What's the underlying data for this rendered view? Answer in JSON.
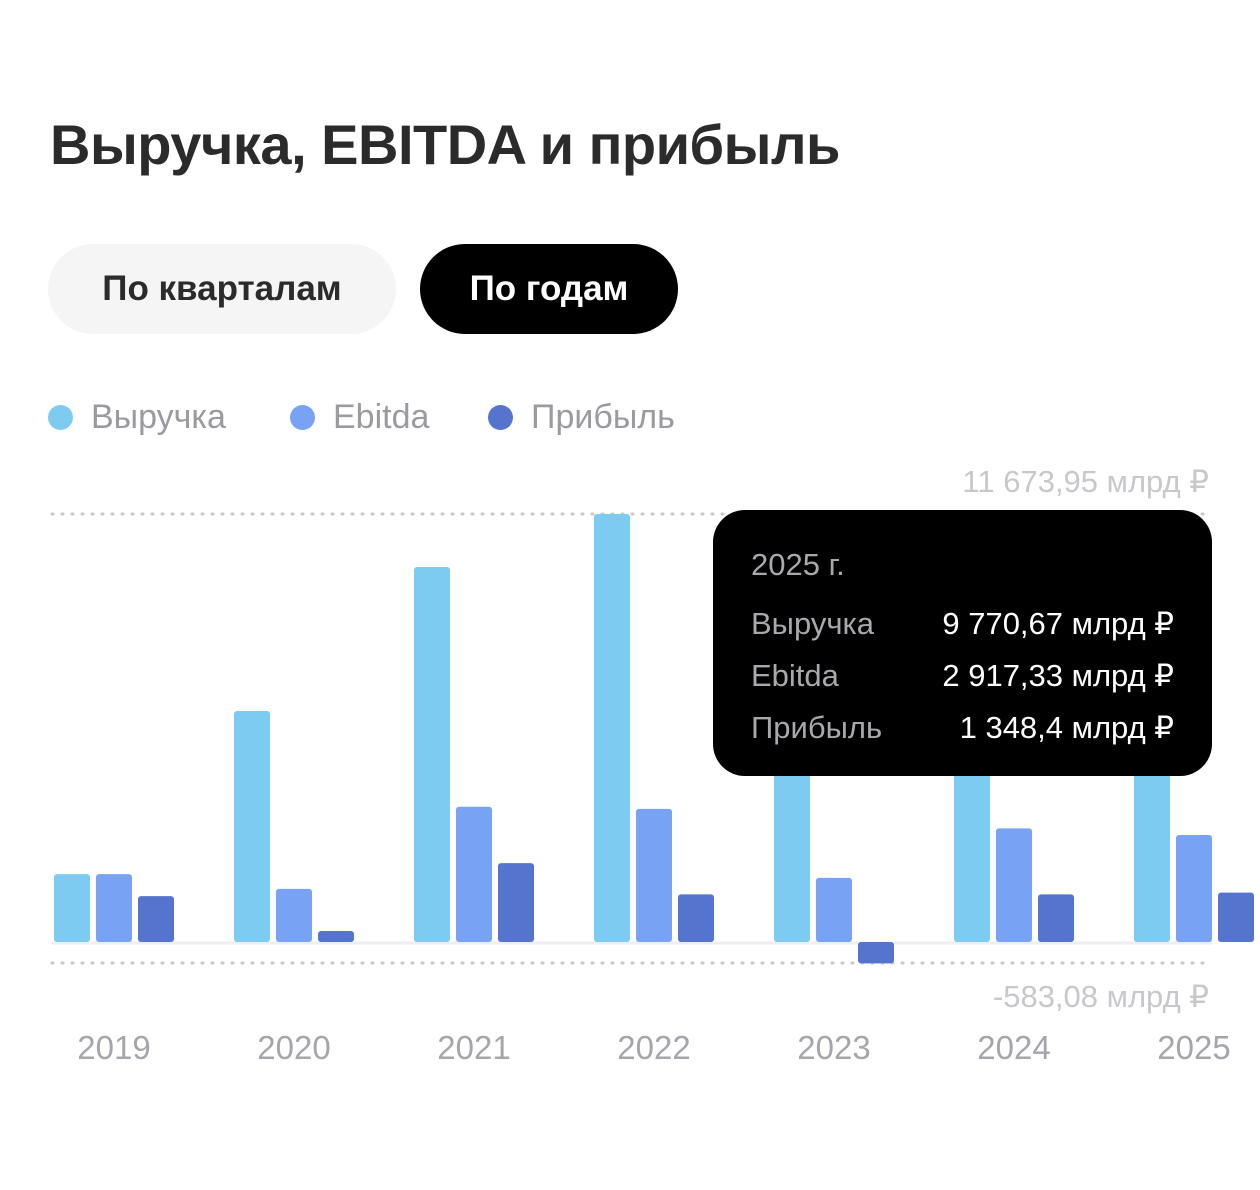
{
  "header": {
    "title": "Выручка, EBITDA и прибыль"
  },
  "tabs": [
    {
      "label": "По кварталам",
      "active": false
    },
    {
      "label": "По годам",
      "active": true
    }
  ],
  "legend": [
    {
      "label": "Выручка",
      "color": "#7ecbf2"
    },
    {
      "label": "Ebitda",
      "color": "#78a2f4"
    },
    {
      "label": "Прибыль",
      "color": "#5474ce"
    }
  ],
  "tooltip": {
    "title": "2025 г.",
    "rows": [
      {
        "label": "Выручка",
        "value": "9 770,67 млрд ₽"
      },
      {
        "label": "Ebitda",
        "value": "2 917,33 млрд ₽"
      },
      {
        "label": "Прибыль",
        "value": "1 348,4 млрд ₽"
      }
    ]
  },
  "chart_data": {
    "type": "bar",
    "categories": [
      "2019",
      "2020",
      "2021",
      "2022",
      "2023",
      "2024",
      "2025"
    ],
    "series": [
      {
        "name": "Выручка",
        "color": "#7ecbf2",
        "values": [
          1850,
          6300,
          10230,
          11673.95,
          6200,
          8300,
          9770.67
        ]
      },
      {
        "name": "Ebitda",
        "color": "#78a2f4",
        "values": [
          1850,
          1450,
          3690,
          3630,
          1750,
          3100,
          2917.33
        ]
      },
      {
        "name": "Прибыль",
        "color": "#5474ce",
        "values": [
          1250,
          300,
          2150,
          1300,
          -583.08,
          1300,
          1348.4
        ]
      }
    ],
    "max_label": "11 673,95 млрд ₽",
    "min_label": "-583,08 млрд ₽",
    "ylim": [
      -583.08,
      11673.95
    ],
    "grid": false,
    "legend_position": "top-left"
  }
}
